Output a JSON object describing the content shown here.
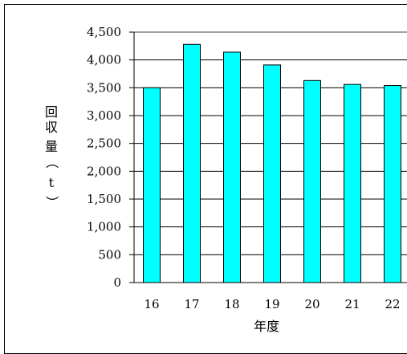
{
  "chart_data": {
    "type": "bar",
    "title": "",
    "xlabel": "年度",
    "ylabel": "回収量（t）",
    "categories": [
      "16",
      "17",
      "18",
      "19",
      "20",
      "21",
      "22"
    ],
    "values": [
      3500,
      4280,
      4140,
      3910,
      3630,
      3560,
      3540
    ],
    "ylim": [
      0,
      4500
    ],
    "yticks": [
      0,
      500,
      1000,
      1500,
      2000,
      2500,
      3000,
      3500,
      4000,
      4500
    ],
    "ytick_labels": [
      "0",
      "500",
      "1,000",
      "1,500",
      "2,000",
      "2,500",
      "3,000",
      "3,500",
      "4,000",
      "4,500"
    ],
    "grid": true,
    "bar_color": "#00ffff",
    "bar_edge_color": "#000000",
    "ylabel_chars": [
      "回",
      "収",
      "量",
      "（",
      "t",
      "）"
    ]
  }
}
